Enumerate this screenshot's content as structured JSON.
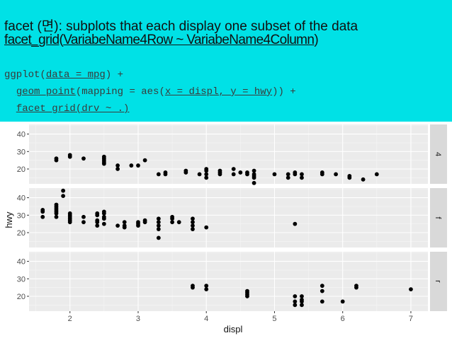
{
  "header": {
    "title_line": "facet (면): subplots that each display one subset of the data",
    "syntax_fn": "facet_grid",
    "syntax_open": "(",
    "syntax_arg": "VariabeName4Row ~ VariabeName4Column",
    "syntax_close": ")"
  },
  "code": {
    "l1_a": "ggplot(",
    "l1_b": "data = mpg",
    "l1_c": ") +",
    "l2_a": "  ",
    "l2_b": "geom_point",
    "l2_c": "(mapping = aes(",
    "l2_d": "x = displ, y = hwy",
    "l2_e": ")) +",
    "l3_a": "  ",
    "l3_b": "facet_grid(drv ~ .)"
  },
  "colors": {
    "banner": "#00e1e6",
    "panel": "#ebebeb",
    "strip": "#d9d9d9",
    "grid_major": "#ffffff",
    "grid_minor": "#f5f5f5",
    "point": "#000000"
  },
  "chart_data": {
    "type": "scatter",
    "xlabel": "displ",
    "ylabel": "hwy",
    "xlim": [
      1.4,
      7.25
    ],
    "ylim": [
      11.5,
      45.5
    ],
    "xticks": [
      "2",
      "3",
      "4",
      "5",
      "6",
      "7"
    ],
    "yticks": [
      "20",
      "30",
      "40"
    ],
    "grid": true,
    "facets": [
      {
        "strip": "4",
        "points": [
          [
            1.8,
            26
          ],
          [
            1.8,
            25
          ],
          [
            2.0,
            28
          ],
          [
            2.0,
            27
          ],
          [
            2.2,
            26
          ],
          [
            2.5,
            27
          ],
          [
            2.5,
            26
          ],
          [
            2.5,
            25
          ],
          [
            2.5,
            24
          ],
          [
            2.5,
            23
          ],
          [
            2.7,
            22
          ],
          [
            2.7,
            20
          ],
          [
            2.9,
            22
          ],
          [
            3.0,
            22
          ],
          [
            3.1,
            25
          ],
          [
            3.3,
            17
          ],
          [
            3.4,
            17
          ],
          [
            3.4,
            18
          ],
          [
            3.7,
            18
          ],
          [
            3.7,
            19
          ],
          [
            3.9,
            17
          ],
          [
            4.0,
            17
          ],
          [
            4.0,
            15
          ],
          [
            4.0,
            19
          ],
          [
            4.0,
            20
          ],
          [
            4.2,
            17
          ],
          [
            4.2,
            18
          ],
          [
            4.2,
            19
          ],
          [
            4.4,
            17
          ],
          [
            4.6,
            17
          ],
          [
            4.7,
            17
          ],
          [
            4.7,
            15
          ],
          [
            4.7,
            12
          ],
          [
            4.7,
            16
          ],
          [
            4.7,
            19
          ],
          [
            5.0,
            17
          ],
          [
            5.2,
            17
          ],
          [
            5.2,
            15
          ],
          [
            5.3,
            18
          ],
          [
            5.3,
            17
          ],
          [
            5.4,
            17
          ],
          [
            5.4,
            15
          ],
          [
            5.7,
            18
          ],
          [
            5.9,
            17
          ],
          [
            5.7,
            17
          ],
          [
            6.1,
            15
          ],
          [
            6.5,
            17
          ],
          [
            6.1,
            16
          ],
          [
            6.3,
            14
          ],
          [
            4.6,
            18
          ],
          [
            4.5,
            18
          ],
          [
            4.4,
            20
          ]
        ]
      },
      {
        "strip": "f",
        "points": [
          [
            1.6,
            33
          ],
          [
            1.6,
            32
          ],
          [
            1.6,
            29
          ],
          [
            1.8,
            29
          ],
          [
            1.8,
            31
          ],
          [
            1.8,
            32
          ],
          [
            1.8,
            33
          ],
          [
            1.8,
            34
          ],
          [
            1.8,
            35
          ],
          [
            1.8,
            36
          ],
          [
            1.9,
            41
          ],
          [
            1.9,
            44
          ],
          [
            2.0,
            29
          ],
          [
            2.0,
            28
          ],
          [
            2.0,
            27
          ],
          [
            2.0,
            26
          ],
          [
            2.0,
            30
          ],
          [
            2.0,
            31
          ],
          [
            2.2,
            29
          ],
          [
            2.2,
            26
          ],
          [
            2.4,
            30
          ],
          [
            2.4,
            31
          ],
          [
            2.4,
            27
          ],
          [
            2.4,
            26
          ],
          [
            2.4,
            24
          ],
          [
            2.5,
            28
          ],
          [
            2.5,
            29
          ],
          [
            2.5,
            31
          ],
          [
            2.5,
            32
          ],
          [
            2.5,
            25
          ],
          [
            2.7,
            24
          ],
          [
            2.8,
            26
          ],
          [
            2.8,
            24
          ],
          [
            2.8,
            23
          ],
          [
            3.0,
            24
          ],
          [
            3.0,
            25
          ],
          [
            3.0,
            26
          ],
          [
            3.1,
            27
          ],
          [
            3.1,
            26
          ],
          [
            3.3,
            28
          ],
          [
            3.3,
            26
          ],
          [
            3.3,
            24
          ],
          [
            3.3,
            22
          ],
          [
            3.3,
            17
          ],
          [
            3.5,
            29
          ],
          [
            3.5,
            28
          ],
          [
            3.5,
            26
          ],
          [
            3.6,
            26
          ],
          [
            3.8,
            28
          ],
          [
            3.8,
            26
          ],
          [
            3.8,
            24
          ],
          [
            3.8,
            22
          ],
          [
            4.0,
            23
          ],
          [
            5.3,
            25
          ]
        ]
      },
      {
        "strip": "r",
        "points": [
          [
            3.8,
            26
          ],
          [
            3.8,
            25
          ],
          [
            4.0,
            26
          ],
          [
            4.0,
            24
          ],
          [
            4.6,
            23
          ],
          [
            4.6,
            22
          ],
          [
            4.6,
            21
          ],
          [
            4.6,
            20
          ],
          [
            5.4,
            20
          ],
          [
            5.4,
            18
          ],
          [
            5.4,
            17
          ],
          [
            5.4,
            15
          ],
          [
            5.3,
            20
          ],
          [
            5.3,
            17
          ],
          [
            5.3,
            15
          ],
          [
            5.7,
            26
          ],
          [
            5.7,
            23
          ],
          [
            5.7,
            17
          ],
          [
            6.0,
            17
          ],
          [
            6.2,
            26
          ],
          [
            6.2,
            25
          ],
          [
            7.0,
            24
          ]
        ]
      }
    ]
  }
}
